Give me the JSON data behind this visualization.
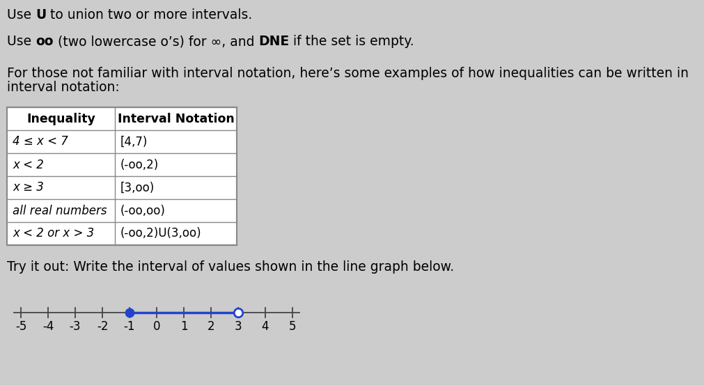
{
  "bg_color": "#cccccc",
  "table_col_headers": [
    "Inequality",
    "Interval Notation"
  ],
  "table_rows": [
    [
      "4 ≤ x < 7",
      "[4,7)"
    ],
    [
      "x < 2",
      "(-oo,2)"
    ],
    [
      "x ≥ 3",
      "[3,oo)"
    ],
    [
      "all real numbers",
      "(-oo,oo)"
    ],
    [
      "x < 2 or x > 3",
      "(-oo,2)U(3,oo)"
    ]
  ],
  "try_text": "Try it out: Write the interval of values shown in the line graph below.",
  "number_line": {
    "tick_labels": [
      -5,
      -4,
      -3,
      -2,
      -1,
      0,
      1,
      2,
      3,
      4,
      5
    ],
    "filled_dot": -1,
    "open_dot": 3,
    "line_color": "#2244cc",
    "line_width": 2.5,
    "dot_size": 9,
    "axis_color": "#444444"
  }
}
